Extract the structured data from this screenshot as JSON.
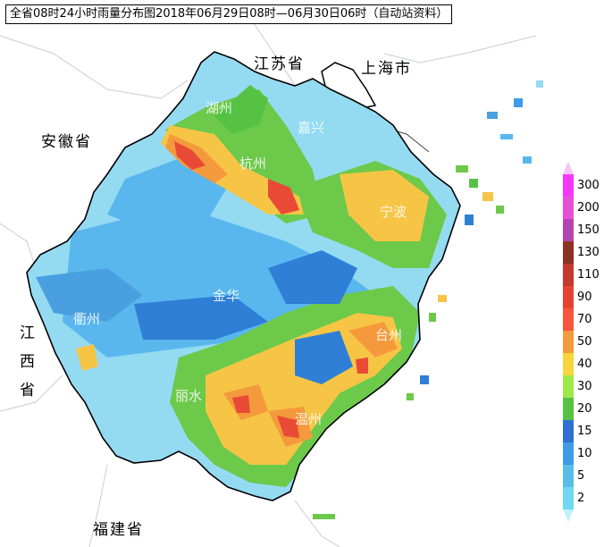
{
  "title": "全省08时24小时雨量分布图2018年06月29日08时—06月30日06时（自动站资料）",
  "provinces": {
    "jiangsu": "江苏省",
    "shanghai": "上海市",
    "anhui": "安徽省",
    "jiangxi": [
      "江",
      "西",
      "省"
    ],
    "fujian": "福建省"
  },
  "cities": {
    "huzhou": "湖州",
    "jiaxing": "嘉兴",
    "hangzhou": "杭州",
    "ningbo": "宁波",
    "jinhua": "金华",
    "quzhou": "衢州",
    "taizhou": "台州",
    "lishui": "丽水",
    "wenzhou": "温州"
  },
  "legend": {
    "levels": [
      "300",
      "200",
      "150",
      "130",
      "110",
      "90",
      "70",
      "50",
      "40",
      "30",
      "20",
      "15",
      "10",
      "5",
      "2"
    ],
    "colors": [
      "#f238f6",
      "#e84fd6",
      "#b544b3",
      "#8a3320",
      "#c43a2c",
      "#e8412f",
      "#f5563c",
      "#f39a3a",
      "#f8d53c",
      "#9fe84a",
      "#55c244",
      "#2f71d3",
      "#3d9be7",
      "#57bde9",
      "#6fd8f2"
    ]
  }
}
